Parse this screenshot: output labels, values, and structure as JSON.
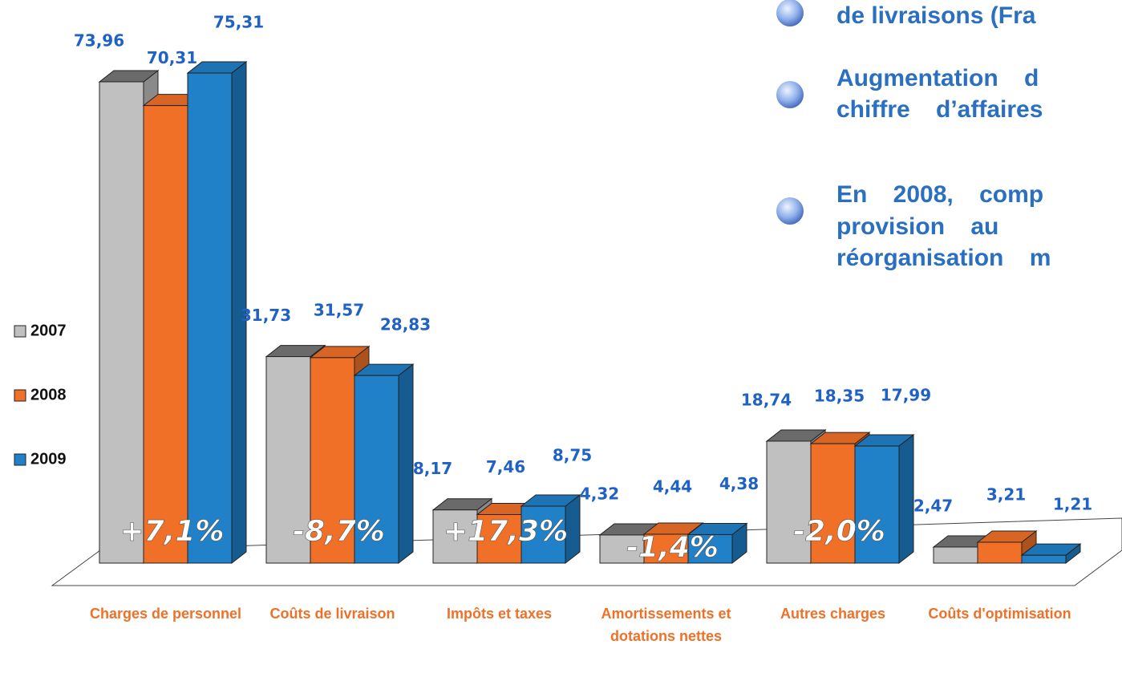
{
  "chart_data": {
    "type": "bar3d",
    "categories": [
      "Charges de personnel",
      "Coûts de livraison",
      "Impôts et taxes",
      "Amortissements et dotations nettes",
      "Autres charges",
      "Coûts d'optimisation"
    ],
    "series": [
      {
        "name": "2007",
        "color": "#c0c0c0",
        "values": [
          73.96,
          31.73,
          8.17,
          4.32,
          18.74,
          2.47
        ],
        "value_labels": [
          "73,96",
          "31,73",
          "8,17",
          "4,32",
          "18,74",
          "2,47"
        ]
      },
      {
        "name": "2008",
        "color": "#f07028",
        "values": [
          70.31,
          31.57,
          7.46,
          4.44,
          18.35,
          3.21
        ],
        "value_labels": [
          "70,31",
          "31,57",
          "7,46",
          "4,44",
          "18,35",
          "3,21"
        ]
      },
      {
        "name": "2009",
        "color": "#2080c8",
        "values": [
          75.31,
          28.83,
          8.75,
          4.38,
          17.99,
          1.21
        ],
        "value_labels": [
          "75,31",
          "28,83",
          "8,75",
          "4,38",
          "17,99",
          "1,21"
        ]
      }
    ],
    "annotations": [
      "+7,1%",
      "-8,7%",
      "+17,3%",
      "-1,4%",
      "-2,0%"
    ],
    "ylim": [
      0,
      80
    ],
    "legend": "left"
  },
  "bullets": [
    [
      "de livraisons (Fra"
    ],
    [
      "Augmentation d",
      "chiffre d’affaires"
    ],
    [
      "En 2008, comp",
      "provision au",
      "réorganisation m"
    ]
  ]
}
